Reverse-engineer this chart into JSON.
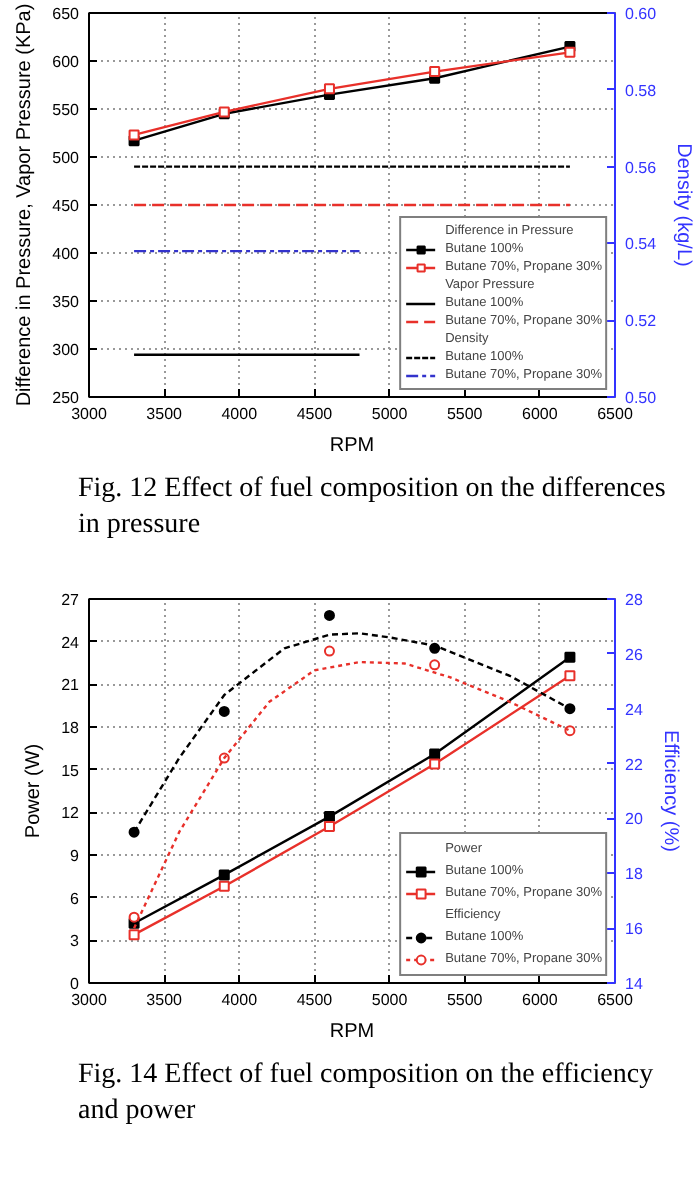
{
  "chart_data": [
    {
      "type": "line",
      "xlabel": "RPM",
      "ylabel": "Difference in Pressure, Vapor Pressure (KPa)",
      "y2label": "Density (kg/L)",
      "annotations": [
        "Difference in Pressure",
        "Vapor Pressure",
        "Density",
        "Fig. 12  Effect of fuel composition on the differences in pressure"
      ],
      "x": [
        3300,
        3900,
        4600,
        5300,
        6200
      ],
      "series": [
        {
          "name": "Butane 100%",
          "color": "#000000",
          "values": [
            517,
            545,
            565,
            582,
            615
          ],
          "marker": "square",
          "line_style": "solid"
        },
        {
          "name": "Butane 70%, Propane 30%",
          "color": "#e8302a",
          "values": [
            523,
            547,
            571,
            589,
            609
          ],
          "marker": "square",
          "line_style": "solid"
        },
        {
          "name": "Butane 100%",
          "color": "#000000",
          "x": [
            3300,
            4800
          ],
          "values": [
            294,
            294
          ],
          "marker": "none",
          "line_style": "solid"
        },
        {
          "name": "Butane 70%, Propane 30%",
          "color": "#e8302a",
          "x": [
            3300,
            6200
          ],
          "values": [
            450,
            450
          ],
          "marker": "none",
          "line_style": "dashed"
        },
        {
          "name": "Butane 100%",
          "color": "#000000",
          "x": [
            3300,
            6200
          ],
          "values": [
            0.56,
            0.56
          ],
          "marker": "none",
          "line_style": "dotted",
          "axis": "y2"
        },
        {
          "name": "Butane 70%, Propane 30%",
          "color": "#3333cc",
          "x": [
            3300,
            4800
          ],
          "values": [
            0.538,
            0.538
          ],
          "marker": "none",
          "line_style": "dashdot",
          "axis": "y2"
        }
      ],
      "xlim": [
        3000,
        6500
      ],
      "xticks": [
        3000,
        3500,
        4000,
        4500,
        5000,
        5500,
        6000,
        6500
      ],
      "ylim": [
        250,
        650
      ],
      "yticks": [
        250,
        300,
        350,
        400,
        450,
        500,
        550,
        600,
        650
      ],
      "y2lim": [
        0.5,
        0.6
      ],
      "y2ticks": [
        {
          "value": 0.5,
          "label": "0.50"
        },
        {
          "value": 0.52,
          "label": "0.52"
        },
        {
          "value": 0.54,
          "label": "0.54"
        },
        {
          "value": 0.56,
          "label": "0.56"
        },
        {
          "value": 0.58,
          "label": "0.58"
        },
        {
          "value": 0.6,
          "label": "0.60"
        }
      ],
      "grid": true,
      "legend": "bottom right"
    },
    {
      "type": "line",
      "xlabel": "RPM",
      "ylabel": "Power (W)",
      "y2label": "Efficiency (%)",
      "annotations": [
        "Power",
        "Efficiency",
        "Fig. 14  Effect of fuel composition on the efficiency and power"
      ],
      "x": [
        3300,
        3900,
        4600,
        5300,
        6200
      ],
      "series": [
        {
          "name": "Butane 100%",
          "color": "#000000",
          "values": [
            4.2,
            7.6,
            11.7,
            16.1,
            22.9
          ],
          "marker": "square",
          "line_style": "solid"
        },
        {
          "name": "Butane 70%, Propane 30%",
          "color": "#e8302a",
          "values": [
            3.4,
            6.8,
            11.0,
            15.4,
            21.6
          ],
          "marker": "square",
          "line_style": "solid"
        },
        {
          "name": "Butane 100%",
          "type": "scatter",
          "color": "#000000",
          "values": [
            19.5,
            23.9,
            27.4,
            26.2,
            24.0
          ],
          "marker": "circle",
          "axis": "y2"
        },
        {
          "name": "Butane 70%, Propane 30%",
          "type": "scatter",
          "color": "#e8302a",
          "values": [
            16.4,
            22.2,
            26.1,
            25.6,
            23.2
          ],
          "marker": "circle",
          "axis": "y2"
        },
        {
          "type": "line",
          "color": "#000000",
          "x": [
            3300,
            3600,
            3900,
            4300,
            4600,
            4800,
            5000,
            5300,
            5800,
            6200
          ],
          "values": [
            19.5,
            22.2,
            24.5,
            26.2,
            26.7,
            26.75,
            26.6,
            26.3,
            25.2,
            24.0
          ],
          "marker": "none",
          "line_style": "dotted",
          "axis": "y2"
        },
        {
          "type": "line",
          "color": "#e8302a",
          "x": [
            3300,
            3600,
            3900,
            4200,
            4500,
            4800,
            5100,
            5400,
            5800,
            6200
          ],
          "values": [
            16.0,
            19.5,
            22.2,
            24.25,
            25.4,
            25.7,
            25.65,
            25.15,
            24.25,
            23.2
          ],
          "marker": "none",
          "line_style": "dotted",
          "axis": "y2"
        }
      ],
      "xlim": [
        3000,
        6500
      ],
      "xticks": [
        3000,
        3500,
        4000,
        4500,
        5000,
        5500,
        6000,
        6500
      ],
      "ylim": [
        0,
        27
      ],
      "yticks": [
        0,
        3,
        6,
        9,
        12,
        15,
        18,
        21,
        24,
        27
      ],
      "y2lim": [
        14,
        28
      ],
      "y2ticks": [
        14,
        16,
        18,
        20,
        22,
        24,
        26,
        28
      ],
      "grid": true,
      "legend": "bottom right"
    }
  ]
}
